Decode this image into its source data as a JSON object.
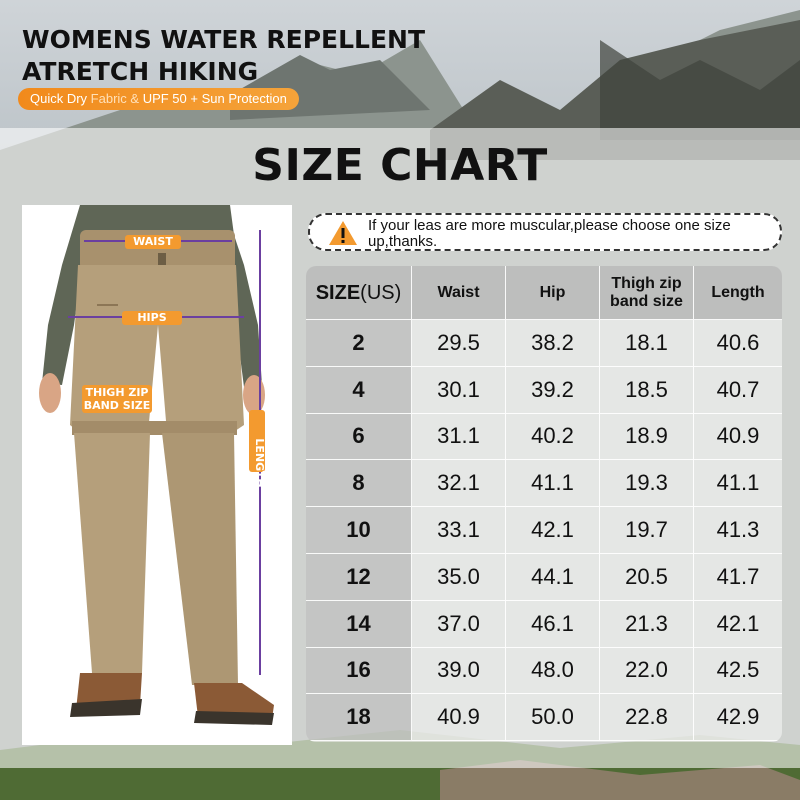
{
  "header": {
    "title_line1": "WOMENS WATER REPELLENT",
    "title_line2": "ATRETCH HIKING",
    "feature_1": "Quick Dry",
    "feature_2": " Fabric & ",
    "feature_3": "UPF 50 + Sun Protection"
  },
  "size_chart_title": "SIZE CHART",
  "notice": {
    "text": "If your leas are more muscular,please choose one size up,thanks.",
    "icon": "warning-icon"
  },
  "measure_labels": {
    "waist": "WAIST",
    "hips": "HIPS",
    "thigh_line1": "THIGH ZIP",
    "thigh_line2": "BAND SIZE",
    "length": "LENGTH"
  },
  "table": {
    "size_header_bold": "SIZE",
    "size_header_unit": "(US)",
    "columns": [
      "Waist",
      "Hip",
      "Thigh zip band size",
      "Length"
    ],
    "rows": [
      [
        "2",
        "29.5",
        "38.2",
        "18.1",
        "40.6"
      ],
      [
        "4",
        "30.1",
        "39.2",
        "18.5",
        "40.7"
      ],
      [
        "6",
        "31.1",
        "40.2",
        "18.9",
        "40.9"
      ],
      [
        "8",
        "32.1",
        "41.1",
        "19.3",
        "41.1"
      ],
      [
        "10",
        "33.1",
        "42.1",
        "19.7",
        "41.3"
      ],
      [
        "12",
        "35.0",
        "44.1",
        "20.5",
        "41.7"
      ],
      [
        "14",
        "37.0",
        "46.1",
        "21.3",
        "42.1"
      ],
      [
        "16",
        "39.0",
        "48.0",
        "22.0",
        "42.5"
      ],
      [
        "18",
        "40.9",
        "50.0",
        "22.8",
        "42.9"
      ]
    ]
  },
  "colors": {
    "accent": "#f39a2f",
    "pants": "#b59f7b",
    "shirt": "#5f6656"
  }
}
